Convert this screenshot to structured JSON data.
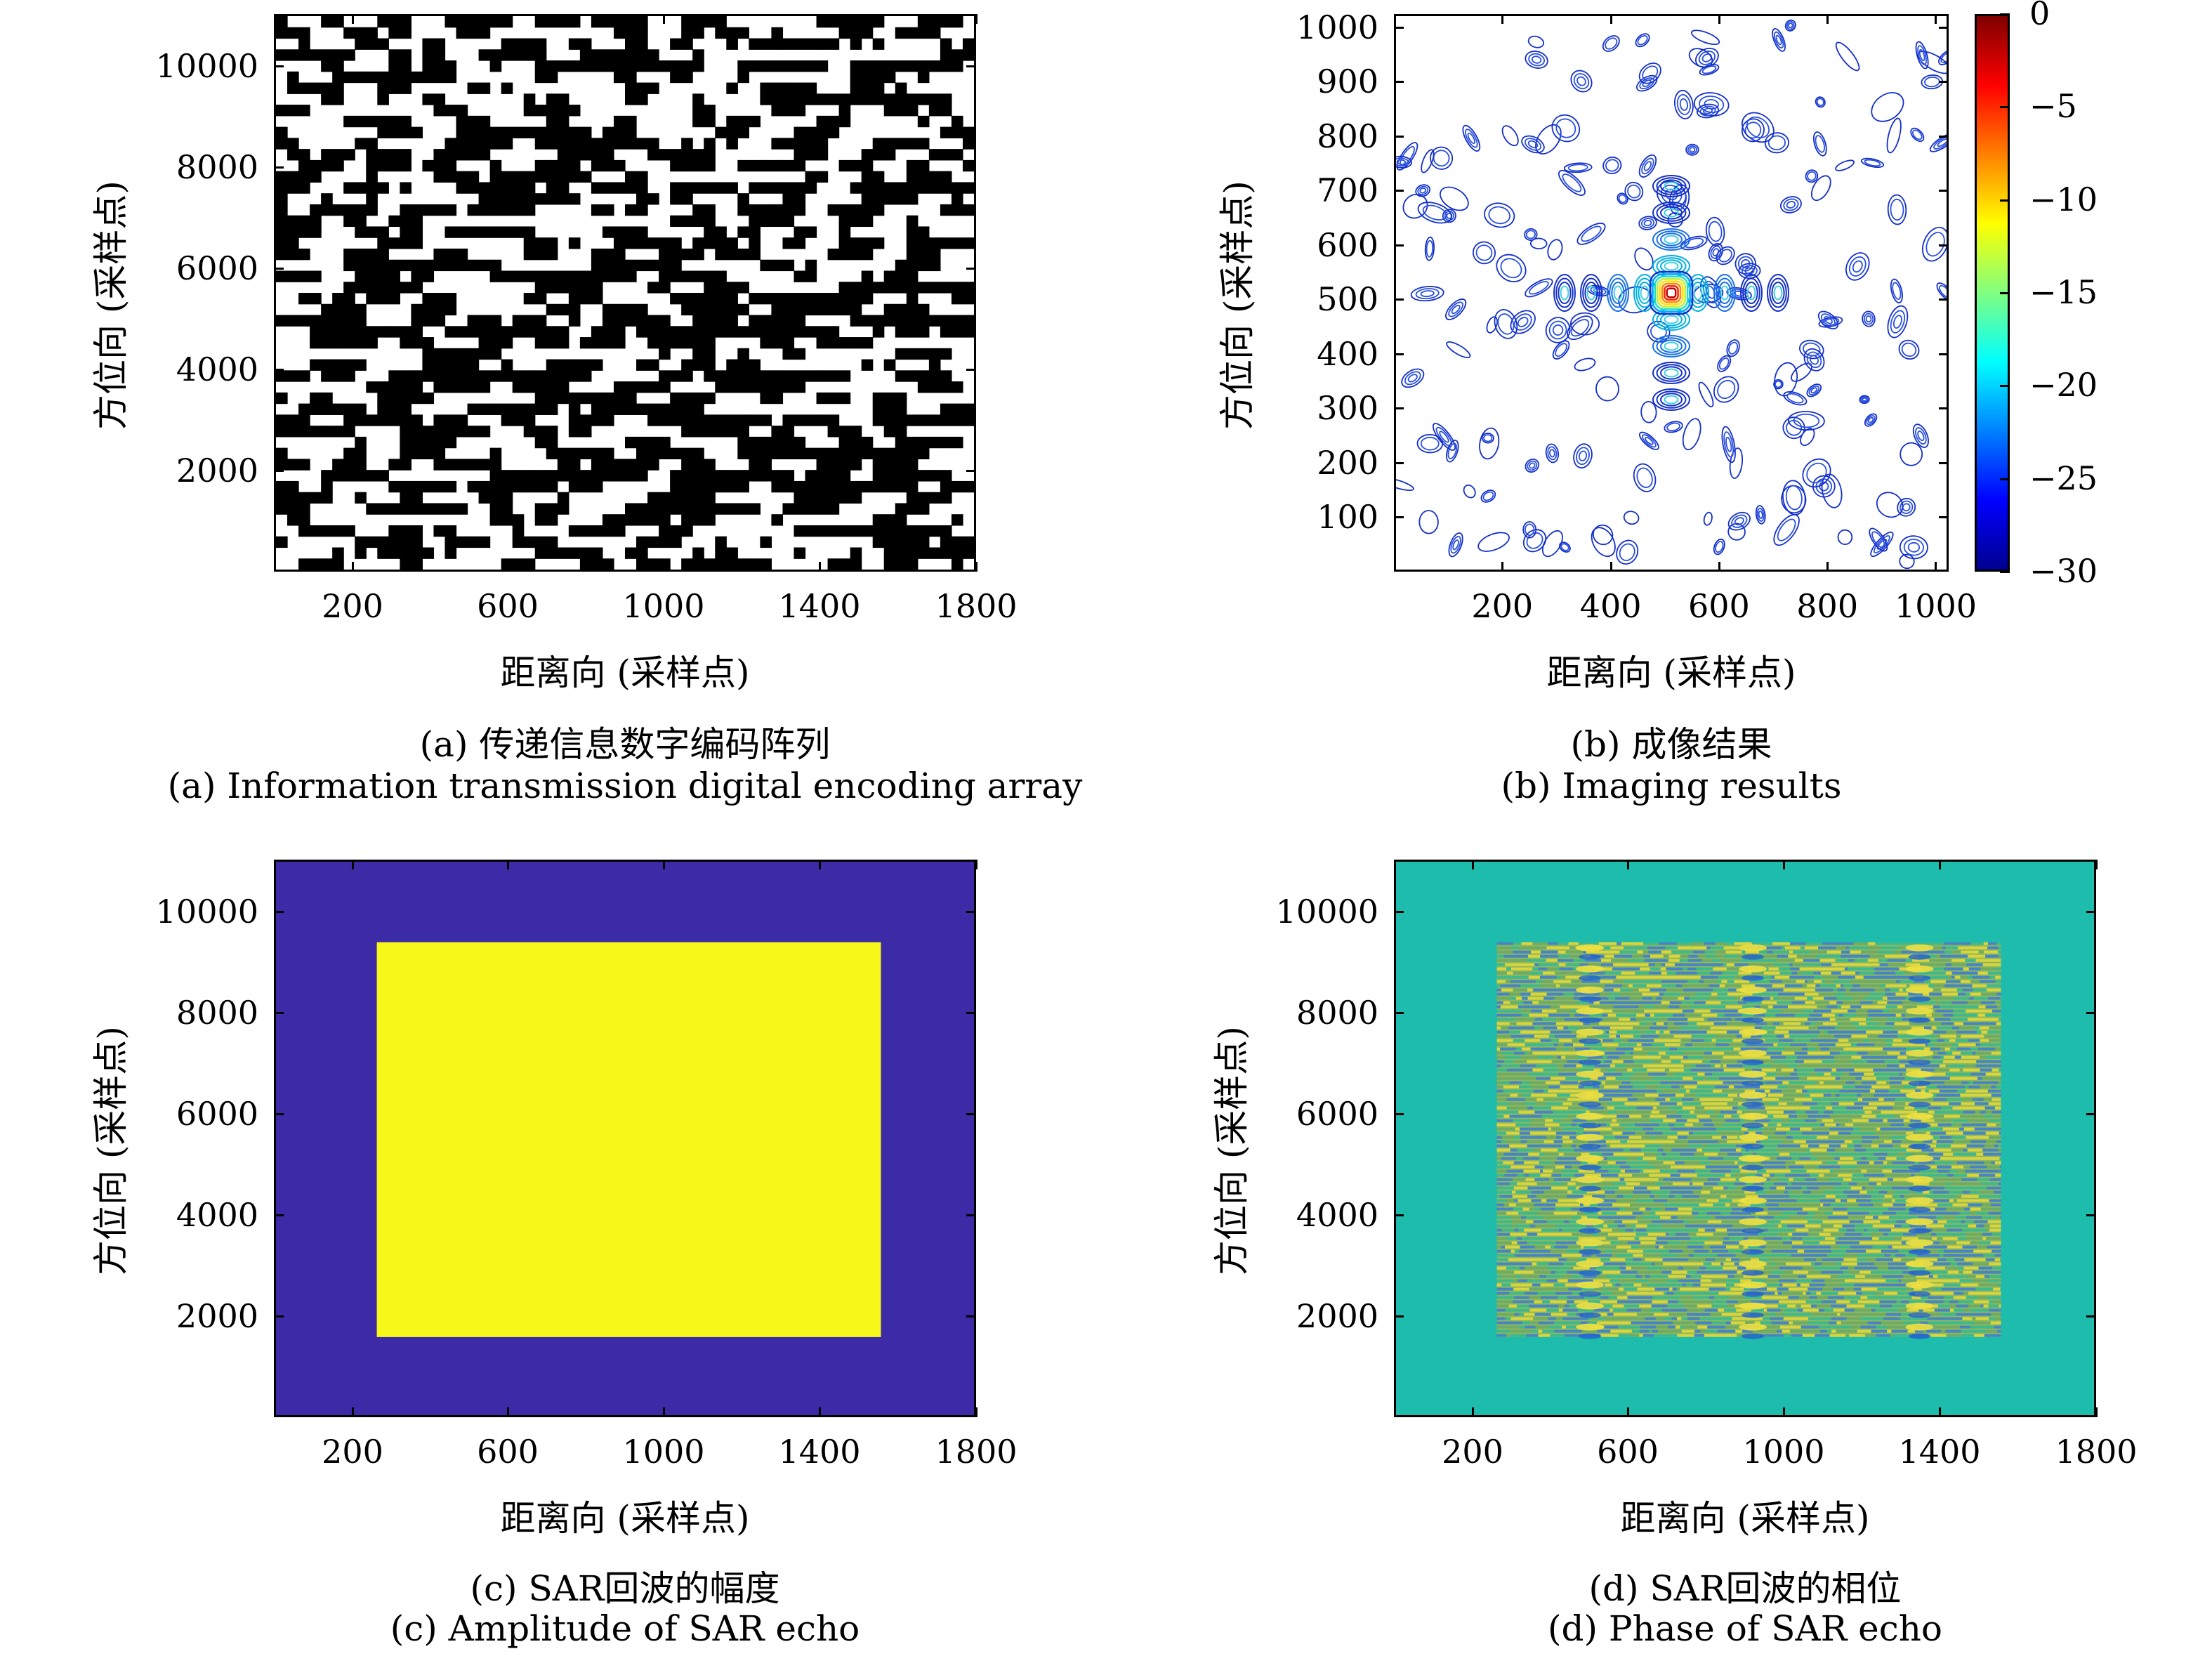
{
  "chart_data": [
    {
      "id": "a",
      "type": "heatmap",
      "description_values": "binary 0/1 encoding array (black = 1, white = 0)",
      "x_ticks": [
        "200",
        "600",
        "1000",
        "1400",
        "1800"
      ],
      "y_ticks": [
        "2000",
        "4000",
        "6000",
        "8000",
        "10000"
      ],
      "xlabel": "距离向 (采样点)",
      "ylabel": "方位向 (采样点)",
      "caption_cn": "(a) 传递信息数字编码阵列",
      "caption_en": "(a) Information transmission digital encoding array",
      "colors": {
        "one": "#000000",
        "zero": "#ffffff"
      }
    },
    {
      "id": "b",
      "type": "heatmap",
      "x_ticks": [
        "200",
        "400",
        "600",
        "800",
        "1000"
      ],
      "y_ticks": [
        "100",
        "200",
        "300",
        "400",
        "500",
        "600",
        "700",
        "800",
        "900",
        "1000"
      ],
      "colorbar_ticks": [
        "0",
        "−5",
        "−10",
        "−15",
        "−20",
        "−25",
        "−30"
      ],
      "colorbar_range": [
        -30,
        0
      ],
      "peak": {
        "x": 512,
        "y": 512
      },
      "xlabel": "距离向 (采样点)",
      "ylabel": "方位向 (采样点)",
      "caption_cn": "(b) 成像结果",
      "caption_en": "(b) Imaging results"
    },
    {
      "id": "c",
      "type": "heatmap",
      "x_ticks": [
        "200",
        "600",
        "1000",
        "1400",
        "1800"
      ],
      "y_ticks": [
        "2000",
        "4000",
        "6000",
        "8000",
        "10000"
      ],
      "xlabel": "距离向 (采样点)",
      "ylabel": "方位向 (采样点)",
      "caption_cn": "(c) SAR回波的幅度",
      "caption_en": "(c) Amplitude of SAR echo",
      "colors": {
        "background": "#3d2aa6",
        "signal": "#f7f719"
      }
    },
    {
      "id": "d",
      "type": "heatmap",
      "x_ticks": [
        "200",
        "600",
        "1000",
        "1400",
        "1800"
      ],
      "y_ticks": [
        "2000",
        "4000",
        "6000",
        "8000",
        "10000"
      ],
      "xlabel": "距离向 (采样点)",
      "ylabel": "方位向 (采样点)",
      "caption_cn": "(d) SAR回波的相位",
      "caption_en": "(d) Phase of SAR echo",
      "colors": {
        "background": "#1dbcac",
        "mid": "#8fb85a",
        "high": "#e8d93a",
        "low": "#3a7ad8"
      }
    }
  ]
}
